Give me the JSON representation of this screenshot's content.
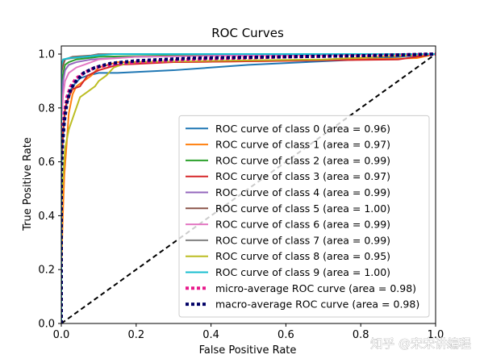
{
  "chart_data": {
    "type": "line",
    "title": "ROC Curves",
    "xlabel": "False Positive Rate",
    "ylabel": "True Positive Rate",
    "xlim": [
      0,
      1
    ],
    "ylim": [
      0,
      1.03
    ],
    "xticks": [
      "0.0",
      "0.2",
      "0.4",
      "0.6",
      "0.8",
      "1.0"
    ],
    "yticks": [
      "0.0",
      "0.2",
      "0.4",
      "0.6",
      "0.8",
      "1.0"
    ],
    "grid": false,
    "legend_position": "lower-right",
    "series": [
      {
        "name": "ROC curve of class 0 (area = 0.96)",
        "color": "#1f77b4",
        "width": 2,
        "dash": "none",
        "points": [
          [
            0,
            0
          ],
          [
            0,
            0.58
          ],
          [
            0.005,
            0.7
          ],
          [
            0.01,
            0.79
          ],
          [
            0.02,
            0.85
          ],
          [
            0.03,
            0.88
          ],
          [
            0.05,
            0.91
          ],
          [
            0.07,
            0.92
          ],
          [
            0.1,
            0.93
          ],
          [
            0.15,
            0.93
          ],
          [
            0.3,
            0.94
          ],
          [
            0.5,
            0.96
          ],
          [
            0.8,
            0.98
          ],
          [
            1,
            1
          ]
        ]
      },
      {
        "name": "ROC curve of class 1 (area = 0.97)",
        "color": "#ff7f0e",
        "width": 2,
        "dash": "none",
        "points": [
          [
            0,
            0
          ],
          [
            0,
            0.2
          ],
          [
            0.004,
            0.4
          ],
          [
            0.008,
            0.55
          ],
          [
            0.015,
            0.68
          ],
          [
            0.02,
            0.78
          ],
          [
            0.03,
            0.85
          ],
          [
            0.04,
            0.88
          ],
          [
            0.06,
            0.9
          ],
          [
            0.08,
            0.92
          ],
          [
            0.1,
            0.95
          ],
          [
            0.15,
            0.97
          ],
          [
            0.3,
            0.97
          ],
          [
            0.6,
            0.975
          ],
          [
            0.95,
            0.985
          ],
          [
            1,
            1
          ]
        ]
      },
      {
        "name": "ROC curve of class 2 (area = 0.99)",
        "color": "#2ca02c",
        "width": 2,
        "dash": "none",
        "points": [
          [
            0,
            0
          ],
          [
            0,
            0.88
          ],
          [
            0.005,
            0.93
          ],
          [
            0.01,
            0.96
          ],
          [
            0.02,
            0.97
          ],
          [
            0.04,
            0.98
          ],
          [
            0.1,
            0.99
          ],
          [
            0.3,
            0.995
          ],
          [
            0.6,
            1
          ],
          [
            1,
            1
          ]
        ]
      },
      {
        "name": "ROC curve of class 3 (area = 0.97)",
        "color": "#d62728",
        "width": 2,
        "dash": "none",
        "points": [
          [
            0,
            0
          ],
          [
            0,
            0.6
          ],
          [
            0.005,
            0.72
          ],
          [
            0.01,
            0.8
          ],
          [
            0.02,
            0.84
          ],
          [
            0.03,
            0.87
          ],
          [
            0.05,
            0.88
          ],
          [
            0.07,
            0.92
          ],
          [
            0.1,
            0.94
          ],
          [
            0.15,
            0.96
          ],
          [
            0.3,
            0.97
          ],
          [
            0.6,
            0.975
          ],
          [
            0.9,
            0.98
          ],
          [
            1,
            1
          ]
        ]
      },
      {
        "name": "ROC curve of class 4 (area = 0.99)",
        "color": "#9467bd",
        "width": 2,
        "dash": "none",
        "points": [
          [
            0,
            0
          ],
          [
            0,
            0.8
          ],
          [
            0.005,
            0.9
          ],
          [
            0.01,
            0.94
          ],
          [
            0.02,
            0.96
          ],
          [
            0.04,
            0.97
          ],
          [
            0.08,
            0.98
          ],
          [
            0.2,
            0.99
          ],
          [
            0.5,
            0.995
          ],
          [
            1,
            1
          ]
        ]
      },
      {
        "name": "ROC curve of class 5 (area = 1.00)",
        "color": "#8c564b",
        "width": 2,
        "dash": "none",
        "points": [
          [
            0,
            0
          ],
          [
            0,
            0.93
          ],
          [
            0.005,
            0.96
          ],
          [
            0.01,
            0.98
          ],
          [
            0.03,
            0.99
          ],
          [
            0.08,
            0.995
          ],
          [
            0.1,
            1
          ],
          [
            1,
            1
          ]
        ]
      },
      {
        "name": "ROC curve of class 6 (area = 0.99)",
        "color": "#e377c2",
        "width": 2,
        "dash": "none",
        "points": [
          [
            0,
            0
          ],
          [
            0,
            0.75
          ],
          [
            0.005,
            0.85
          ],
          [
            0.01,
            0.9
          ],
          [
            0.02,
            0.93
          ],
          [
            0.04,
            0.95
          ],
          [
            0.06,
            0.96
          ],
          [
            0.1,
            0.98
          ],
          [
            0.2,
            0.99
          ],
          [
            0.5,
            0.995
          ],
          [
            1,
            1
          ]
        ]
      },
      {
        "name": "ROC curve of class 7 (area = 0.99)",
        "color": "#7f7f7f",
        "width": 2,
        "dash": "none",
        "points": [
          [
            0,
            0
          ],
          [
            0,
            0.95
          ],
          [
            0.005,
            0.98
          ],
          [
            0.03,
            0.985
          ],
          [
            0.07,
            0.99
          ],
          [
            0.1,
            1
          ],
          [
            1,
            1
          ]
        ]
      },
      {
        "name": "ROC curve of class 8 (area = 0.95)",
        "color": "#bcbd22",
        "width": 2,
        "dash": "none",
        "points": [
          [
            0,
            0
          ],
          [
            0,
            0.45
          ],
          [
            0.005,
            0.55
          ],
          [
            0.01,
            0.65
          ],
          [
            0.02,
            0.72
          ],
          [
            0.03,
            0.76
          ],
          [
            0.04,
            0.8
          ],
          [
            0.05,
            0.84
          ],
          [
            0.07,
            0.86
          ],
          [
            0.09,
            0.88
          ],
          [
            0.1,
            0.9
          ],
          [
            0.12,
            0.92
          ],
          [
            0.14,
            0.95
          ],
          [
            0.16,
            0.96
          ],
          [
            0.2,
            0.97
          ],
          [
            0.4,
            0.975
          ],
          [
            0.7,
            0.98
          ],
          [
            1,
            1
          ]
        ]
      },
      {
        "name": "ROC curve of class 9 (area = 1.00)",
        "color": "#17becf",
        "width": 2,
        "dash": "none",
        "points": [
          [
            0,
            0
          ],
          [
            0,
            0.96
          ],
          [
            0.005,
            0.98
          ],
          [
            0.02,
            0.985
          ],
          [
            0.06,
            0.99
          ],
          [
            0.14,
            1
          ],
          [
            1,
            1
          ]
        ]
      },
      {
        "name": "micro-average ROC curve (area = 0.98)",
        "color": "#e8198b",
        "width": 4,
        "dash": "4,3",
        "points": [
          [
            0,
            0
          ],
          [
            0,
            0.6
          ],
          [
            0.003,
            0.7
          ],
          [
            0.008,
            0.78
          ],
          [
            0.015,
            0.84
          ],
          [
            0.025,
            0.88
          ],
          [
            0.04,
            0.91
          ],
          [
            0.06,
            0.93
          ],
          [
            0.09,
            0.95
          ],
          [
            0.13,
            0.96
          ],
          [
            0.2,
            0.97
          ],
          [
            0.35,
            0.98
          ],
          [
            0.6,
            0.99
          ],
          [
            0.85,
            0.995
          ],
          [
            1,
            1
          ]
        ]
      },
      {
        "name": "macro-average ROC curve (area = 0.98)",
        "color": "#000066",
        "width": 4,
        "dash": "4,3",
        "points": [
          [
            0,
            0
          ],
          [
            0,
            0.55
          ],
          [
            0.003,
            0.66
          ],
          [
            0.008,
            0.75
          ],
          [
            0.015,
            0.82
          ],
          [
            0.025,
            0.87
          ],
          [
            0.04,
            0.9
          ],
          [
            0.06,
            0.93
          ],
          [
            0.09,
            0.95
          ],
          [
            0.13,
            0.965
          ],
          [
            0.2,
            0.975
          ],
          [
            0.35,
            0.985
          ],
          [
            0.6,
            0.99
          ],
          [
            0.85,
            0.995
          ],
          [
            1,
            1
          ]
        ]
      }
    ],
    "chance_line": {
      "color": "#000000",
      "width": 2,
      "dash": "6,4",
      "points": [
        [
          0,
          0
        ],
        [
          1,
          1
        ]
      ]
    }
  },
  "watermark": "知乎 @宋宋讲编程"
}
